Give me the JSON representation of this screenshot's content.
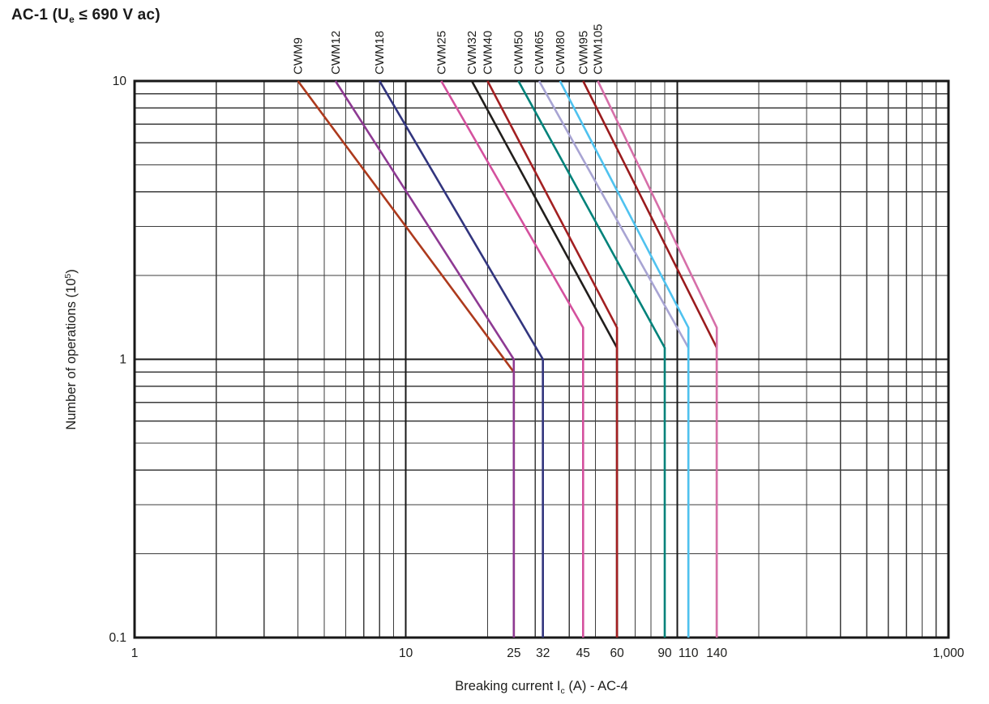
{
  "title": {
    "plain": "AC-1 (Ue ≤ 690 V ac)",
    "parts": [
      {
        "t": "AC-1 (U"
      },
      {
        "t": "e",
        "sub": true
      },
      {
        "t": " ≤ 690 V ac)"
      }
    ]
  },
  "chart_data": {
    "type": "line",
    "title": "AC-1 (Ue ≤ 690 V ac)",
    "x_scale": "log",
    "y_scale": "log",
    "xlim": [
      1,
      1000
    ],
    "ylim": [
      0.1,
      10
    ],
    "xlabel": "Breaking current Ic (A) - AC-4",
    "xlabel_parts": [
      {
        "t": "Breaking current I"
      },
      {
        "t": "c",
        "sub": true
      },
      {
        "t": " (A) - AC-4"
      }
    ],
    "ylabel": "Number of operations (105)",
    "ylabel_parts": [
      {
        "t": "Number of operations (10"
      },
      {
        "t": "5",
        "sup": true
      },
      {
        "t": ")"
      }
    ],
    "grid": "full log-log grid, dark lines",
    "x_grid_minor": [
      2,
      3,
      4,
      5,
      6,
      7,
      8,
      9,
      20,
      30,
      40,
      50,
      60,
      70,
      80,
      90,
      200,
      300,
      400,
      500,
      600,
      700,
      800,
      900
    ],
    "x_grid_major": [
      1,
      10,
      100,
      1000
    ],
    "y_grid_minor": [
      0.2,
      0.3,
      0.4,
      0.5,
      0.6,
      0.7,
      0.8,
      0.9,
      2,
      3,
      4,
      5,
      6,
      7,
      8,
      9
    ],
    "y_grid_major": [
      0.1,
      1,
      10
    ],
    "x_ticks": [
      {
        "v": 1,
        "label": "1"
      },
      {
        "v": 10,
        "label": "10"
      },
      {
        "v": 25,
        "label": "25"
      },
      {
        "v": 32,
        "label": "32"
      },
      {
        "v": 45,
        "label": "45"
      },
      {
        "v": 60,
        "label": "60"
      },
      {
        "v": 90,
        "label": "90"
      },
      {
        "v": 110,
        "label": "110"
      },
      {
        "v": 140,
        "label": "140"
      },
      {
        "v": 1000,
        "label": "1,000"
      }
    ],
    "y_ticks": [
      {
        "v": 10,
        "label": "10"
      },
      {
        "v": 1,
        "label": "1"
      },
      {
        "v": 0.1,
        "label": "0.1"
      }
    ],
    "series": [
      {
        "name": "CWM9",
        "color": "#ad3a1d",
        "breaking_current": 25,
        "points": [
          [
            4.0,
            10
          ],
          [
            25,
            0.9
          ],
          [
            25,
            0.1
          ]
        ]
      },
      {
        "name": "CWM12",
        "color": "#8e3a93",
        "breaking_current": 25,
        "points": [
          [
            5.5,
            10
          ],
          [
            25,
            1.0
          ],
          [
            25,
            0.1
          ]
        ]
      },
      {
        "name": "CWM18",
        "color": "#32357e",
        "breaking_current": 32,
        "points": [
          [
            8.0,
            10
          ],
          [
            32,
            1.0
          ],
          [
            32,
            0.1
          ]
        ]
      },
      {
        "name": "CWM25",
        "color": "#d4519e",
        "breaking_current": 45,
        "points": [
          [
            13.5,
            10
          ],
          [
            45,
            1.3
          ],
          [
            45,
            0.1
          ]
        ]
      },
      {
        "name": "CWM32",
        "color": "#211e1c",
        "breaking_current": 60,
        "points": [
          [
            17.5,
            10
          ],
          [
            60,
            1.1
          ],
          [
            60,
            0.1
          ]
        ]
      },
      {
        "name": "CWM40",
        "color": "#a32022",
        "breaking_current": 60,
        "points": [
          [
            20,
            10
          ],
          [
            60,
            1.3
          ],
          [
            60,
            0.1
          ]
        ]
      },
      {
        "name": "CWM50",
        "color": "#00827a",
        "breaking_current": 90,
        "points": [
          [
            26,
            10
          ],
          [
            90,
            1.1
          ],
          [
            90,
            0.1
          ]
        ]
      },
      {
        "name": "CWM65",
        "color": "#a8a4d3",
        "breaking_current": 110,
        "points": [
          [
            31,
            10
          ],
          [
            110,
            1.1
          ],
          [
            110,
            0.1
          ]
        ]
      },
      {
        "name": "CWM80",
        "color": "#4fc2ef",
        "breaking_current": 110,
        "points": [
          [
            37,
            10
          ],
          [
            110,
            1.3
          ],
          [
            110,
            0.1
          ]
        ]
      },
      {
        "name": "CWM95",
        "color": "#9a1b1d",
        "breaking_current": 140,
        "points": [
          [
            45,
            10
          ],
          [
            140,
            1.1
          ],
          [
            140,
            0.1
          ]
        ]
      },
      {
        "name": "CWM105",
        "color": "#d66fa9",
        "breaking_current": 140,
        "points": [
          [
            51,
            10
          ],
          [
            140,
            1.3
          ],
          [
            140,
            0.1
          ]
        ]
      }
    ],
    "legend_position": "top-rotated-labels",
    "colors": {
      "grid_minor": "#3c3c3c",
      "grid_major": "#181818",
      "frame": "#181818",
      "text": "#1d1d1b"
    }
  }
}
